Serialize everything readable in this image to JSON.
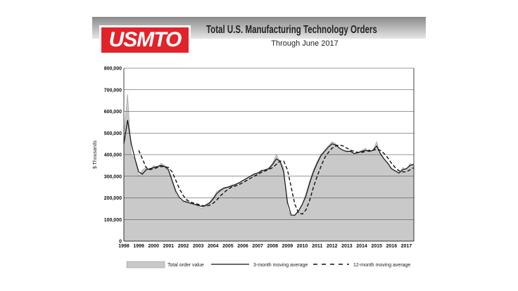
{
  "header": {
    "logo": "USMTO",
    "title": "Total U.S. Manufacturing Technology Orders",
    "subtitle": "Through June 2017"
  },
  "chart_data": {
    "type": "area",
    "title": "Total U.S. Manufacturing Technology Orders",
    "subtitle": "Through June 2017",
    "ylabel": "$ Thousands",
    "xlabel": "",
    "ylim": [
      0,
      800000
    ],
    "yticks": [
      "0",
      "100,000",
      "200,000",
      "300,000",
      "400,000",
      "500,000",
      "600,000",
      "700,000",
      "800,000"
    ],
    "xticks": [
      "1998",
      "1999",
      "2000",
      "2001",
      "2002",
      "2003",
      "2004",
      "2005",
      "2006",
      "2007",
      "2008",
      "2009",
      "2010",
      "2011",
      "2012",
      "2013",
      "2014",
      "2015",
      "2016",
      "2017"
    ],
    "xlim": [
      1998,
      2017.5
    ],
    "grid": "horizontal",
    "legend_position": "bottom",
    "x": [
      1998,
      1998.25,
      1998.5,
      1998.75,
      1999,
      1999.25,
      1999.5,
      1999.75,
      2000,
      2000.25,
      2000.5,
      2000.75,
      2001,
      2001.25,
      2001.5,
      2001.75,
      2002,
      2002.25,
      2002.5,
      2002.75,
      2003,
      2003.25,
      2003.5,
      2003.75,
      2004,
      2004.25,
      2004.5,
      2004.75,
      2005,
      2005.25,
      2005.5,
      2005.75,
      2006,
      2006.25,
      2006.5,
      2006.75,
      2007,
      2007.25,
      2007.5,
      2007.75,
      2008,
      2008.25,
      2008.5,
      2008.75,
      2009,
      2009.25,
      2009.5,
      2009.75,
      2010,
      2010.25,
      2010.5,
      2010.75,
      2011,
      2011.25,
      2011.5,
      2011.75,
      2012,
      2012.25,
      2012.5,
      2012.75,
      2013,
      2013.25,
      2013.5,
      2013.75,
      2014,
      2014.25,
      2014.5,
      2014.75,
      2015,
      2015.25,
      2015.5,
      2015.75,
      2016,
      2016.25,
      2016.5,
      2016.75,
      2017,
      2017.25,
      2017.5
    ],
    "series": [
      {
        "name": "Total order value",
        "style": "area",
        "values": [
          500000,
          680000,
          400000,
          380000,
          300000,
          330000,
          340000,
          330000,
          350000,
          340000,
          360000,
          350000,
          320000,
          270000,
          220000,
          190000,
          180000,
          190000,
          170000,
          170000,
          160000,
          150000,
          170000,
          180000,
          200000,
          230000,
          240000,
          250000,
          250000,
          260000,
          260000,
          270000,
          280000,
          290000,
          300000,
          310000,
          310000,
          330000,
          320000,
          340000,
          360000,
          400000,
          370000,
          340000,
          150000,
          110000,
          120000,
          140000,
          170000,
          220000,
          280000,
          330000,
          370000,
          400000,
          420000,
          440000,
          460000,
          450000,
          430000,
          420000,
          410000,
          420000,
          400000,
          410000,
          420000,
          430000,
          410000,
          420000,
          460000,
          400000,
          380000,
          360000,
          330000,
          320000,
          310000,
          340000,
          330000,
          360000,
          350000
        ]
      },
      {
        "name": "3-month moving average",
        "style": "solid",
        "values": [
          450000,
          560000,
          450000,
          380000,
          320000,
          310000,
          330000,
          335000,
          340000,
          345000,
          350000,
          345000,
          330000,
          280000,
          230000,
          200000,
          185000,
          180000,
          175000,
          170000,
          165000,
          160000,
          165000,
          175000,
          195000,
          220000,
          235000,
          245000,
          250000,
          255000,
          262000,
          270000,
          280000,
          290000,
          300000,
          310000,
          315000,
          325000,
          330000,
          335000,
          355000,
          380000,
          370000,
          320000,
          180000,
          120000,
          120000,
          140000,
          170000,
          210000,
          270000,
          320000,
          360000,
          395000,
          415000,
          435000,
          450000,
          445000,
          430000,
          420000,
          415000,
          415000,
          405000,
          410000,
          415000,
          420000,
          415000,
          420000,
          440000,
          405000,
          380000,
          360000,
          335000,
          325000,
          315000,
          330000,
          335000,
          350000,
          355000
        ]
      },
      {
        "name": "12-month moving average",
        "style": "dashed",
        "values": [
          null,
          null,
          null,
          null,
          420000,
          380000,
          340000,
          330000,
          335000,
          340000,
          345000,
          345000,
          340000,
          320000,
          280000,
          240000,
          210000,
          190000,
          180000,
          175000,
          170000,
          165000,
          162000,
          165000,
          175000,
          190000,
          210000,
          225000,
          240000,
          250000,
          255000,
          262000,
          270000,
          280000,
          290000,
          300000,
          308000,
          318000,
          325000,
          332000,
          340000,
          355000,
          370000,
          370000,
          330000,
          250000,
          170000,
          130000,
          125000,
          145000,
          190000,
          250000,
          300000,
          345000,
          385000,
          410000,
          430000,
          440000,
          445000,
          440000,
          430000,
          420000,
          415000,
          410000,
          410000,
          415000,
          420000,
          420000,
          425000,
          420000,
          405000,
          385000,
          360000,
          340000,
          325000,
          320000,
          320000,
          330000,
          340000
        ]
      }
    ]
  }
}
